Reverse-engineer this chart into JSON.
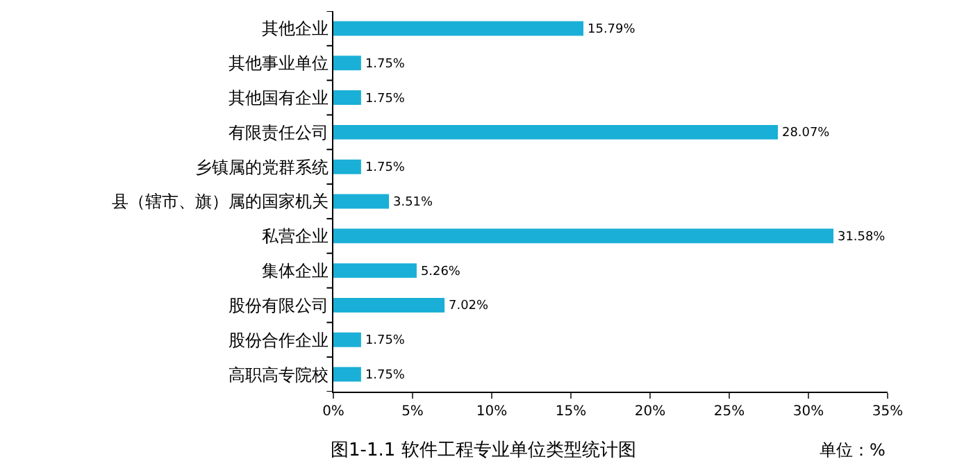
{
  "chart_data": {
    "type": "bar",
    "orientation": "horizontal",
    "title": "图1-1.1 软件工程专业单位类型统计图",
    "annotations": [
      "单位：%"
    ],
    "categories": [
      "其他企业",
      "其他事业单位",
      "其他国有企业",
      "有限责任公司",
      "乡镇属的党群系统",
      "县（辖市、旗）属的国家机关",
      "私营企业",
      "集体企业",
      "股份有限公司",
      "股份合作企业",
      "高职高专院校"
    ],
    "values": [
      15.79,
      1.75,
      1.75,
      28.07,
      1.75,
      3.51,
      31.58,
      5.26,
      7.02,
      1.75,
      1.75
    ],
    "value_labels": [
      "15.79%",
      "1.75%",
      "1.75%",
      "28.07%",
      "1.75%",
      "3.51%",
      "31.58%",
      "5.26%",
      "7.02%",
      "1.75%",
      "1.75%"
    ],
    "color": "#1aafd6",
    "xlim": [
      0,
      35
    ],
    "xticks": [
      {
        "value": 0,
        "label": "0%"
      },
      {
        "value": 5,
        "label": "5%"
      },
      {
        "value": 10,
        "label": "10%"
      },
      {
        "value": 15,
        "label": "15%"
      },
      {
        "value": 20,
        "label": "20%"
      },
      {
        "value": 25,
        "label": "25%"
      },
      {
        "value": 30,
        "label": "30%"
      },
      {
        "value": 35,
        "label": "35%"
      }
    ],
    "legend": false
  }
}
